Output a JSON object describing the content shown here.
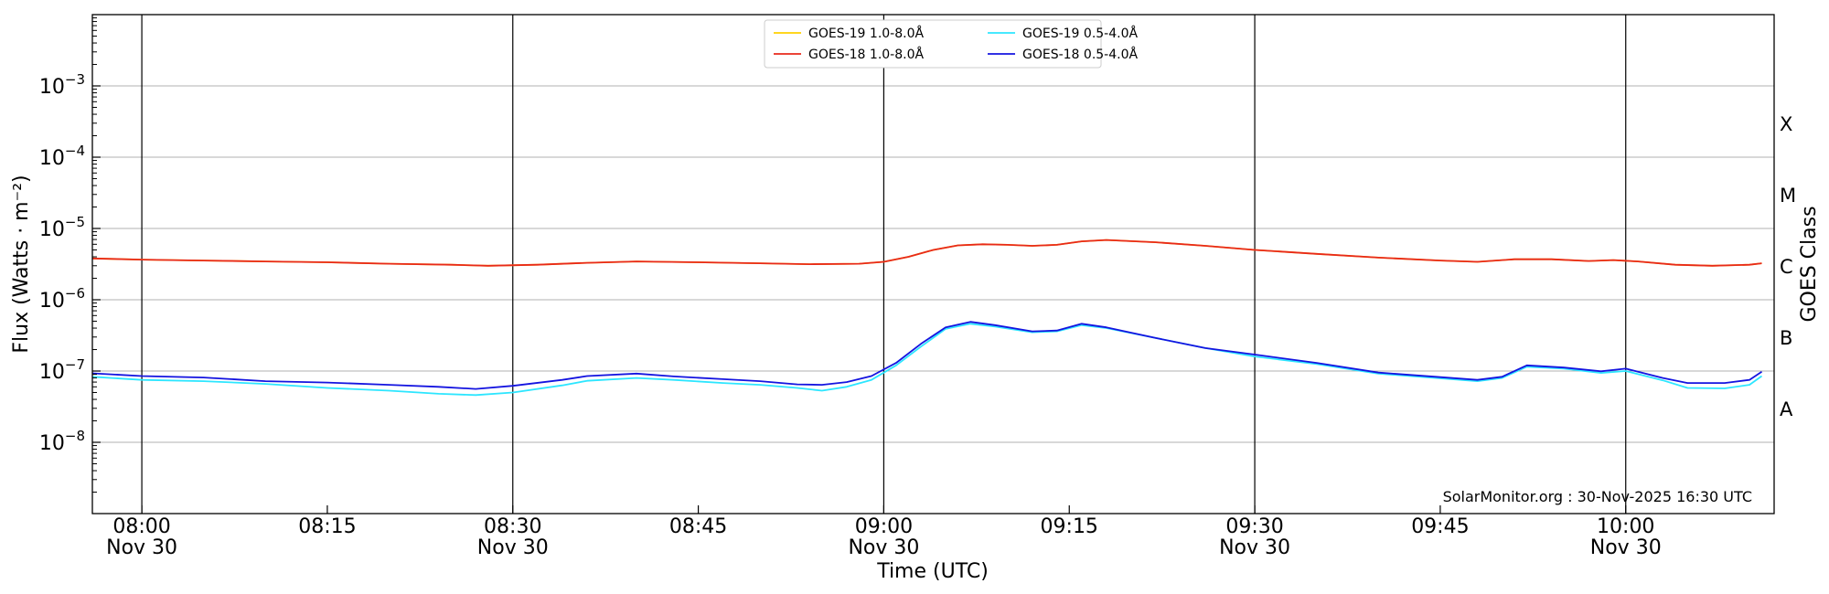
{
  "chart_data": {
    "type": "line",
    "title": "",
    "xlabel": "Time (UTC)",
    "ylabel": "Flux (Watts · m⁻²)",
    "y2label": "GOES Class",
    "yscale": "log",
    "xlim": [
      "07:56",
      "10:12"
    ],
    "ylim": [
      1e-09,
      0.01
    ],
    "grid": "horizontal at decades",
    "credit": "SolarMonitor.org : 30-Nov-2025 16:30 UTC",
    "x_ticks": [
      {
        "time": "08:00",
        "label": "08:00",
        "sublabel": "Nov 30",
        "vline": true
      },
      {
        "time": "08:15",
        "label": "08:15",
        "sublabel": "",
        "vline": false
      },
      {
        "time": "08:30",
        "label": "08:30",
        "sublabel": "Nov 30",
        "vline": true
      },
      {
        "time": "08:45",
        "label": "08:45",
        "sublabel": "",
        "vline": false
      },
      {
        "time": "09:00",
        "label": "09:00",
        "sublabel": "Nov 30",
        "vline": true
      },
      {
        "time": "09:15",
        "label": "09:15",
        "sublabel": "",
        "vline": false
      },
      {
        "time": "09:30",
        "label": "09:30",
        "sublabel": "Nov 30",
        "vline": true
      },
      {
        "time": "09:45",
        "label": "09:45",
        "sublabel": "",
        "vline": false
      },
      {
        "time": "10:00",
        "label": "10:00",
        "sublabel": "Nov 30",
        "vline": true
      }
    ],
    "y_ticks": [
      {
        "value": 1e-08,
        "base": "10",
        "exp": "−8"
      },
      {
        "value": 1e-07,
        "base": "10",
        "exp": "−7"
      },
      {
        "value": 1e-06,
        "base": "10",
        "exp": "−6"
      },
      {
        "value": 1e-05,
        "base": "10",
        "exp": "−5"
      },
      {
        "value": 0.0001,
        "base": "10",
        "exp": "−4"
      },
      {
        "value": 0.001,
        "base": "10",
        "exp": "−3"
      }
    ],
    "goes_classes": [
      {
        "label": "A",
        "value": 3e-08
      },
      {
        "label": "B",
        "value": 3e-07
      },
      {
        "label": "C",
        "value": 3e-06
      },
      {
        "label": "M",
        "value": 3e-05
      },
      {
        "label": "X",
        "value": 0.0003
      }
    ],
    "legend": {
      "position": "top-center",
      "columns": [
        [
          "GOES-19 1.0-8.0Å",
          "GOES-18 1.0-8.0Å"
        ],
        [
          "GOES-19 0.5-4.0Å",
          "GOES-18 0.5-4.0Å"
        ]
      ]
    },
    "series": [
      {
        "name": "GOES-19 1.0-8.0Å",
        "color": "#ffd000",
        "points": [
          [
            "07:56",
            3.8e-06
          ],
          [
            "08:00",
            3.65e-06
          ],
          [
            "08:05",
            3.55e-06
          ],
          [
            "08:10",
            3.45e-06
          ],
          [
            "08:15",
            3.35e-06
          ],
          [
            "08:20",
            3.2e-06
          ],
          [
            "08:25",
            3.1e-06
          ],
          [
            "08:28",
            3e-06
          ],
          [
            "08:32",
            3.1e-06
          ],
          [
            "08:36",
            3.3e-06
          ],
          [
            "08:40",
            3.45e-06
          ],
          [
            "08:45",
            3.35e-06
          ],
          [
            "08:50",
            3.25e-06
          ],
          [
            "08:54",
            3.15e-06
          ],
          [
            "08:58",
            3.2e-06
          ],
          [
            "09:00",
            3.4e-06
          ],
          [
            "09:02",
            4e-06
          ],
          [
            "09:04",
            5e-06
          ],
          [
            "09:06",
            5.8e-06
          ],
          [
            "09:08",
            6e-06
          ],
          [
            "09:10",
            5.9e-06
          ],
          [
            "09:12",
            5.7e-06
          ],
          [
            "09:14",
            5.9e-06
          ],
          [
            "09:16",
            6.6e-06
          ],
          [
            "09:18",
            6.9e-06
          ],
          [
            "09:22",
            6.4e-06
          ],
          [
            "09:26",
            5.7e-06
          ],
          [
            "09:30",
            5e-06
          ],
          [
            "09:35",
            4.4e-06
          ],
          [
            "09:40",
            3.9e-06
          ],
          [
            "09:45",
            3.55e-06
          ],
          [
            "09:48",
            3.4e-06
          ],
          [
            "09:51",
            3.7e-06
          ],
          [
            "09:54",
            3.7e-06
          ],
          [
            "09:57",
            3.5e-06
          ],
          [
            "09:59",
            3.6e-06
          ],
          [
            "10:01",
            3.45e-06
          ],
          [
            "10:04",
            3.1e-06
          ],
          [
            "10:07",
            3e-06
          ],
          [
            "10:10",
            3.1e-06
          ],
          [
            "10:11",
            3.25e-06
          ]
        ]
      },
      {
        "name": "GOES-18 1.0-8.0Å",
        "color": "#e8291b",
        "points": [
          [
            "07:56",
            3.8e-06
          ],
          [
            "08:00",
            3.65e-06
          ],
          [
            "08:05",
            3.55e-06
          ],
          [
            "08:10",
            3.45e-06
          ],
          [
            "08:15",
            3.35e-06
          ],
          [
            "08:20",
            3.2e-06
          ],
          [
            "08:25",
            3.1e-06
          ],
          [
            "08:28",
            3e-06
          ],
          [
            "08:32",
            3.1e-06
          ],
          [
            "08:36",
            3.3e-06
          ],
          [
            "08:40",
            3.45e-06
          ],
          [
            "08:45",
            3.35e-06
          ],
          [
            "08:50",
            3.25e-06
          ],
          [
            "08:54",
            3.15e-06
          ],
          [
            "08:58",
            3.2e-06
          ],
          [
            "09:00",
            3.4e-06
          ],
          [
            "09:02",
            4e-06
          ],
          [
            "09:04",
            5e-06
          ],
          [
            "09:06",
            5.8e-06
          ],
          [
            "09:08",
            6e-06
          ],
          [
            "09:10",
            5.9e-06
          ],
          [
            "09:12",
            5.7e-06
          ],
          [
            "09:14",
            5.9e-06
          ],
          [
            "09:16",
            6.6e-06
          ],
          [
            "09:18",
            6.9e-06
          ],
          [
            "09:22",
            6.4e-06
          ],
          [
            "09:26",
            5.7e-06
          ],
          [
            "09:30",
            5e-06
          ],
          [
            "09:35",
            4.4e-06
          ],
          [
            "09:40",
            3.9e-06
          ],
          [
            "09:45",
            3.55e-06
          ],
          [
            "09:48",
            3.4e-06
          ],
          [
            "09:51",
            3.7e-06
          ],
          [
            "09:54",
            3.7e-06
          ],
          [
            "09:57",
            3.5e-06
          ],
          [
            "09:59",
            3.6e-06
          ],
          [
            "10:01",
            3.45e-06
          ],
          [
            "10:04",
            3.1e-06
          ],
          [
            "10:07",
            3e-06
          ],
          [
            "10:10",
            3.1e-06
          ],
          [
            "10:11",
            3.25e-06
          ]
        ]
      },
      {
        "name": "GOES-19 0.5-4.0Å",
        "color": "#2de6ff",
        "points": [
          [
            "07:56",
            8.3e-08
          ],
          [
            "08:00",
            7.5e-08
          ],
          [
            "08:05",
            7.2e-08
          ],
          [
            "08:10",
            6.6e-08
          ],
          [
            "08:15",
            5.8e-08
          ],
          [
            "08:20",
            5.3e-08
          ],
          [
            "08:24",
            4.8e-08
          ],
          [
            "08:27",
            4.6e-08
          ],
          [
            "08:30",
            5e-08
          ],
          [
            "08:34",
            6.3e-08
          ],
          [
            "08:36",
            7.3e-08
          ],
          [
            "08:40",
            8e-08
          ],
          [
            "08:43",
            7.5e-08
          ],
          [
            "08:47",
            6.8e-08
          ],
          [
            "08:50",
            6.4e-08
          ],
          [
            "08:53",
            5.8e-08
          ],
          [
            "08:55",
            5.3e-08
          ],
          [
            "08:57",
            6e-08
          ],
          [
            "08:59",
            7.5e-08
          ],
          [
            "09:01",
            1.2e-07
          ],
          [
            "09:03",
            2.2e-07
          ],
          [
            "09:05",
            3.9e-07
          ],
          [
            "09:07",
            4.6e-07
          ],
          [
            "09:09",
            4.2e-07
          ],
          [
            "09:12",
            3.5e-07
          ],
          [
            "09:14",
            3.6e-07
          ],
          [
            "09:16",
            4.4e-07
          ],
          [
            "09:18",
            4e-07
          ],
          [
            "09:22",
            2.9e-07
          ],
          [
            "09:26",
            2.1e-07
          ],
          [
            "09:30",
            1.6e-07
          ],
          [
            "09:35",
            1.25e-07
          ],
          [
            "09:40",
            9.2e-08
          ],
          [
            "09:45",
            7.9e-08
          ],
          [
            "09:48",
            7.2e-08
          ],
          [
            "09:50",
            8e-08
          ],
          [
            "09:52",
            1.15e-07
          ],
          [
            "09:55",
            1.08e-07
          ],
          [
            "09:58",
            9.4e-08
          ],
          [
            "10:00",
            1e-07
          ],
          [
            "10:03",
            7.4e-08
          ],
          [
            "10:05",
            5.8e-08
          ],
          [
            "10:08",
            5.7e-08
          ],
          [
            "10:10",
            6.4e-08
          ],
          [
            "10:11",
            8.5e-08
          ]
        ]
      },
      {
        "name": "GOES-18 0.5-4.0Å",
        "color": "#1414e0",
        "points": [
          [
            "07:56",
            9.3e-08
          ],
          [
            "08:00",
            8.5e-08
          ],
          [
            "08:05",
            8.1e-08
          ],
          [
            "08:10",
            7.2e-08
          ],
          [
            "08:15",
            6.9e-08
          ],
          [
            "08:20",
            6.4e-08
          ],
          [
            "08:24",
            6e-08
          ],
          [
            "08:27",
            5.6e-08
          ],
          [
            "08:30",
            6.2e-08
          ],
          [
            "08:34",
            7.5e-08
          ],
          [
            "08:36",
            8.5e-08
          ],
          [
            "08:40",
            9.2e-08
          ],
          [
            "08:43",
            8.4e-08
          ],
          [
            "08:47",
            7.7e-08
          ],
          [
            "08:50",
            7.2e-08
          ],
          [
            "08:53",
            6.5e-08
          ],
          [
            "08:55",
            6.4e-08
          ],
          [
            "08:57",
            7e-08
          ],
          [
            "08:59",
            8.5e-08
          ],
          [
            "09:01",
            1.3e-07
          ],
          [
            "09:03",
            2.4e-07
          ],
          [
            "09:05",
            4.1e-07
          ],
          [
            "09:07",
            4.9e-07
          ],
          [
            "09:09",
            4.4e-07
          ],
          [
            "09:12",
            3.6e-07
          ],
          [
            "09:14",
            3.7e-07
          ],
          [
            "09:16",
            4.6e-07
          ],
          [
            "09:18",
            4.1e-07
          ],
          [
            "09:22",
            2.9e-07
          ],
          [
            "09:26",
            2.1e-07
          ],
          [
            "09:30",
            1.7e-07
          ],
          [
            "09:35",
            1.3e-07
          ],
          [
            "09:40",
            9.5e-08
          ],
          [
            "09:45",
            8.2e-08
          ],
          [
            "09:48",
            7.5e-08
          ],
          [
            "09:50",
            8.3e-08
          ],
          [
            "09:52",
            1.2e-07
          ],
          [
            "09:55",
            1.12e-07
          ],
          [
            "09:58",
            9.9e-08
          ],
          [
            "10:00",
            1.08e-07
          ],
          [
            "10:03",
            8e-08
          ],
          [
            "10:05",
            6.8e-08
          ],
          [
            "10:08",
            6.8e-08
          ],
          [
            "10:10",
            7.5e-08
          ],
          [
            "10:11",
            9.8e-08
          ]
        ]
      }
    ]
  }
}
